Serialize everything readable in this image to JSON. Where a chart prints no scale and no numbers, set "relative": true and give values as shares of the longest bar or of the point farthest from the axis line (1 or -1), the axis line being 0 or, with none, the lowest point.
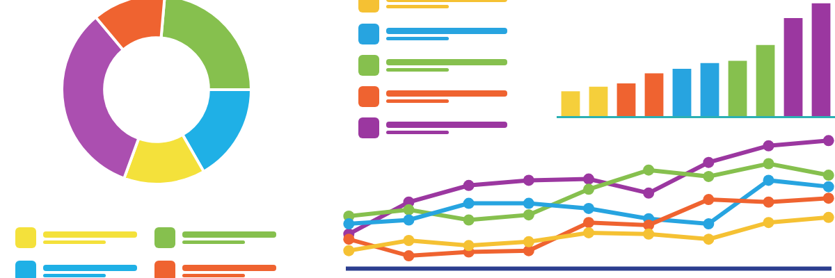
{
  "chart_data": [
    {
      "type": "donut",
      "categories": [
        null,
        null,
        null,
        null,
        null
      ],
      "values": [
        23.6,
        16.7,
        13.9,
        33.3,
        12.5
      ],
      "colors": [
        "#86c04e",
        "#1fb0e6",
        "#f4e13b",
        "#ab4fb0",
        "#ef6330"
      ]
    },
    {
      "type": "bar",
      "relative": true,
      "categories": [
        null,
        null,
        null,
        null,
        null,
        null,
        null,
        null,
        null,
        null
      ],
      "values": [
        0.22,
        0.26,
        0.29,
        0.38,
        0.42,
        0.47,
        0.49,
        0.63,
        0.87,
        1
      ],
      "colors": [
        "#f5cf3b",
        "#f5cf3b",
        "#ef6330",
        "#ef6330",
        "#27a4e0",
        "#27a4e0",
        "#86c04e",
        "#86c04e",
        "#9b37a0",
        "#9b37a0"
      ]
    },
    {
      "type": "line",
      "relative": true,
      "marker": "circle",
      "categories": [
        null,
        null,
        null,
        null,
        null,
        null,
        null,
        null,
        null
      ],
      "series": [
        {
          "color": "#9b37a0",
          "values": [
            0.27,
            0.52,
            0.65,
            0.69,
            0.7,
            0.59,
            0.83,
            0.96,
            1
          ]
        },
        {
          "color": "#86c04e",
          "values": [
            0.41,
            0.46,
            0.38,
            0.42,
            0.62,
            0.77,
            0.72,
            0.82,
            0.73
          ]
        },
        {
          "color": "#27a4e0",
          "values": [
            0.35,
            0.38,
            0.51,
            0.51,
            0.47,
            0.39,
            0.35,
            0.69,
            0.64
          ]
        },
        {
          "color": "#ef6330",
          "values": [
            0.23,
            0.1,
            0.13,
            0.14,
            0.36,
            0.34,
            0.54,
            0.52,
            0.55
          ]
        },
        {
          "color": "#f5c133",
          "values": [
            0.14,
            0.22,
            0.18,
            0.21,
            0.28,
            0.27,
            0.23,
            0.36,
            0.4
          ]
        }
      ]
    }
  ]
}
